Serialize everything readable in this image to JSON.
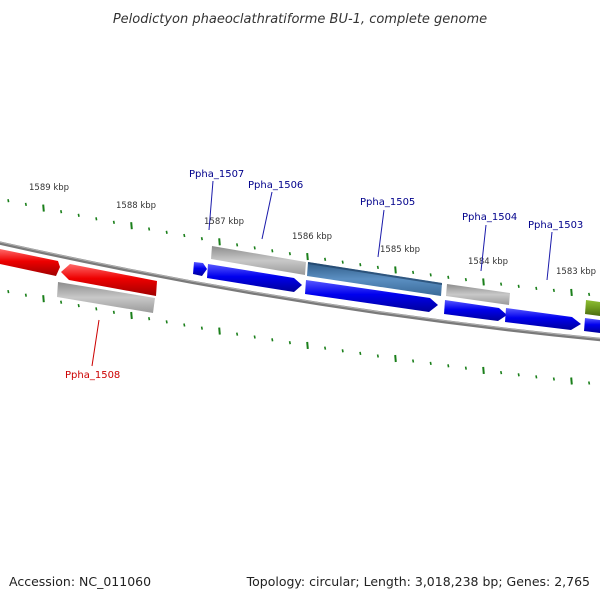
{
  "title": "Pelodictyon phaeoclathratiforme BU-1, complete genome",
  "accession": "Accession: NC_011060",
  "summary": "Topology: circular; Length: 3,018,238 bp; Genes: 2,765",
  "colors": {
    "backbone": "#808080",
    "tick": "#1a7f1a",
    "forward_cds": "#0000ee",
    "reverse_cds": "#ee0000",
    "gene_gray": "#b4b4b4",
    "steelblue": "#4a7fb0",
    "olive": "#6e9a1e",
    "label_forward": "#00008b",
    "label_reverse": "#cc0000"
  },
  "kbp_labels": [
    {
      "kbp": 1589,
      "text": "1589 kbp"
    },
    {
      "kbp": 1588,
      "text": "1588 kbp"
    },
    {
      "kbp": 1587,
      "text": "1587 kbp"
    },
    {
      "kbp": 1586,
      "text": "1586 kbp"
    },
    {
      "kbp": 1585,
      "text": "1585 kbp"
    },
    {
      "kbp": 1584,
      "text": "1584 kbp"
    },
    {
      "kbp": 1583,
      "text": "1583 kbp"
    }
  ],
  "genes": [
    {
      "name": "Ppha_1507",
      "strand": "+",
      "color": "label_forward"
    },
    {
      "name": "Ppha_1506",
      "strand": "+",
      "color": "label_forward"
    },
    {
      "name": "Ppha_1505",
      "strand": "+",
      "color": "label_forward"
    },
    {
      "name": "Ppha_1504",
      "strand": "+",
      "color": "label_forward"
    },
    {
      "name": "Ppha_1503",
      "strand": "+",
      "color": "label_forward"
    },
    {
      "name": "Ppha_1508",
      "strand": "-",
      "color": "label_reverse"
    }
  ]
}
